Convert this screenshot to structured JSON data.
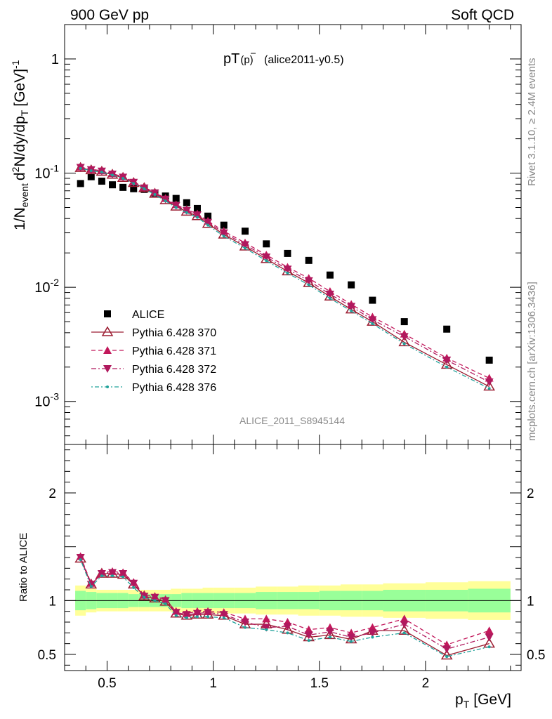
{
  "header": {
    "left": "900 GeV pp",
    "right": "Soft QCD"
  },
  "side": {
    "rivet": "Rivet 3.1.10, ≥ 2.4M events",
    "mcplots": "mcplots.cern.ch [arXiv:1306.3436]"
  },
  "colors": {
    "data": "#000000",
    "p370": "#9b1b30",
    "p371": "#c2185b",
    "p372": "#b0195e",
    "p376": "#20a29a",
    "band_inner": "#99ff99",
    "band_outer": "#ffff99"
  },
  "chart_data": [
    {
      "type": "scatter",
      "title_main": "pT",
      "title_sub": "(p)",
      "title_tag": "(alice2011-y0.5)",
      "analysis": "ALICE_2011_S8945144",
      "ylabel": "1/N",
      "ylabel_sub": "event",
      "ylabel_rest": "d",
      "ylabel_sup": "2",
      "ylabel_tail": "N/dy/dp",
      "ylabel_tail_sub": "T",
      "ylabel_unit": "[GeV]",
      "ylabel_unit_sup": "-1",
      "yscale": "log",
      "ylim": [
        0.00042,
        2.0
      ],
      "xlim": [
        0.3,
        2.45
      ],
      "yticks": [
        {
          "label": "1",
          "sup": "",
          "value": 1
        },
        {
          "label": "10",
          "sup": "-1",
          "value": 0.1
        },
        {
          "label": "10",
          "sup": "-2",
          "value": 0.01
        },
        {
          "label": "10",
          "sup": "-3",
          "value": 0.001
        }
      ],
      "x": [
        0.375,
        0.425,
        0.475,
        0.525,
        0.575,
        0.625,
        0.675,
        0.725,
        0.775,
        0.825,
        0.875,
        0.925,
        0.975,
        1.05,
        1.15,
        1.25,
        1.35,
        1.45,
        1.55,
        1.65,
        1.75,
        1.9,
        2.1,
        2.3
      ],
      "legend": [
        {
          "name": "ALICE",
          "key": "data"
        },
        {
          "name": "Pythia 6.428 370",
          "key": "p370"
        },
        {
          "name": "Pythia 6.428 371",
          "key": "p371"
        },
        {
          "name": "Pythia 6.428 372",
          "key": "p372"
        },
        {
          "name": "Pythia 6.428 376",
          "key": "p376"
        }
      ],
      "series": [
        {
          "name": "ALICE",
          "key": "data",
          "values": [
            0.081,
            0.093,
            0.085,
            0.079,
            0.075,
            0.073,
            0.072,
            0.067,
            0.063,
            0.06,
            0.055,
            0.049,
            0.042,
            0.035,
            0.031,
            0.024,
            0.0198,
            0.0172,
            0.0128,
            0.0105,
            0.0077,
            0.005,
            0.0043,
            0.0023
          ]
        },
        {
          "name": "Pythia 6.428 370",
          "key": "p370",
          "values": [
            0.111,
            0.106,
            0.103,
            0.097,
            0.091,
            0.082,
            0.074,
            0.066,
            0.058,
            0.051,
            0.046,
            0.042,
            0.036,
            0.029,
            0.0228,
            0.0177,
            0.0138,
            0.0109,
            0.0083,
            0.0064,
            0.005,
            0.0033,
            0.0021,
            0.00135
          ]
        },
        {
          "name": "Pythia 6.428 371",
          "key": "p371",
          "values": [
            0.113,
            0.108,
            0.105,
            0.099,
            0.093,
            0.084,
            0.075,
            0.068,
            0.06,
            0.053,
            0.048,
            0.044,
            0.038,
            0.031,
            0.0245,
            0.0192,
            0.015,
            0.012,
            0.0092,
            0.0071,
            0.0055,
            0.0039,
            0.0024,
            0.0016
          ]
        },
        {
          "name": "Pythia 6.428 372",
          "key": "p372",
          "values": [
            0.112,
            0.107,
            0.104,
            0.098,
            0.092,
            0.083,
            0.074,
            0.067,
            0.059,
            0.052,
            0.047,
            0.043,
            0.037,
            0.03,
            0.0236,
            0.0184,
            0.0144,
            0.0114,
            0.0087,
            0.0068,
            0.0052,
            0.0037,
            0.0023,
            0.00148
          ]
        },
        {
          "name": "Pythia 6.428 376",
          "key": "p376",
          "values": [
            0.11,
            0.105,
            0.102,
            0.096,
            0.09,
            0.081,
            0.073,
            0.065,
            0.057,
            0.05,
            0.045,
            0.041,
            0.035,
            0.028,
            0.022,
            0.0171,
            0.0133,
            0.0105,
            0.008,
            0.0062,
            0.0048,
            0.0032,
            0.002,
            0.0013
          ]
        }
      ]
    },
    {
      "type": "line",
      "ylabel": "Ratio to ALICE",
      "ylim": [
        0.35,
        2.45
      ],
      "xlim": [
        0.3,
        2.45
      ],
      "xlabel": "p",
      "xlabel_sub": "T",
      "xlabel_unit": "[GeV]",
      "xticks": [
        {
          "label": "0.5",
          "value": 0.5
        },
        {
          "label": "1",
          "value": 1.0
        },
        {
          "label": "1.5",
          "value": 1.5
        },
        {
          "label": "2",
          "value": 2.0
        }
      ],
      "yticks": [
        {
          "label": "0.5",
          "value": 0.5
        },
        {
          "label": "1",
          "value": 1.0
        },
        {
          "label": "2",
          "value": 2.0
        }
      ],
      "bins": [
        {
          "lo": 0.35,
          "hi": 0.4,
          "inner": 0.09,
          "outer": 0.14
        },
        {
          "lo": 0.4,
          "hi": 0.45,
          "inner": 0.08,
          "outer": 0.11
        },
        {
          "lo": 0.45,
          "hi": 0.5,
          "inner": 0.07,
          "outer": 0.1
        },
        {
          "lo": 0.5,
          "hi": 0.55,
          "inner": 0.07,
          "outer": 0.1
        },
        {
          "lo": 0.55,
          "hi": 0.6,
          "inner": 0.07,
          "outer": 0.1
        },
        {
          "lo": 0.6,
          "hi": 0.65,
          "inner": 0.06,
          "outer": 0.1
        },
        {
          "lo": 0.65,
          "hi": 0.7,
          "inner": 0.06,
          "outer": 0.1
        },
        {
          "lo": 0.7,
          "hi": 0.75,
          "inner": 0.06,
          "outer": 0.1
        },
        {
          "lo": 0.75,
          "hi": 0.8,
          "inner": 0.06,
          "outer": 0.1
        },
        {
          "lo": 0.8,
          "hi": 0.85,
          "inner": 0.06,
          "outer": 0.11
        },
        {
          "lo": 0.85,
          "hi": 0.9,
          "inner": 0.07,
          "outer": 0.11
        },
        {
          "lo": 0.9,
          "hi": 0.95,
          "inner": 0.07,
          "outer": 0.11
        },
        {
          "lo": 0.95,
          "hi": 1.0,
          "inner": 0.07,
          "outer": 0.12
        },
        {
          "lo": 1.0,
          "hi": 1.1,
          "inner": 0.07,
          "outer": 0.12
        },
        {
          "lo": 1.1,
          "hi": 1.2,
          "inner": 0.07,
          "outer": 0.12
        },
        {
          "lo": 1.2,
          "hi": 1.3,
          "inner": 0.08,
          "outer": 0.13
        },
        {
          "lo": 1.3,
          "hi": 1.4,
          "inner": 0.08,
          "outer": 0.13
        },
        {
          "lo": 1.4,
          "hi": 1.5,
          "inner": 0.08,
          "outer": 0.14
        },
        {
          "lo": 1.5,
          "hi": 1.6,
          "inner": 0.09,
          "outer": 0.14
        },
        {
          "lo": 1.6,
          "hi": 1.7,
          "inner": 0.09,
          "outer": 0.15
        },
        {
          "lo": 1.7,
          "hi": 1.8,
          "inner": 0.09,
          "outer": 0.15
        },
        {
          "lo": 1.8,
          "hi": 2.0,
          "inner": 0.1,
          "outer": 0.16
        },
        {
          "lo": 2.0,
          "hi": 2.2,
          "inner": 0.1,
          "outer": 0.17
        },
        {
          "lo": 2.2,
          "hi": 2.4,
          "inner": 0.11,
          "outer": 0.18
        }
      ],
      "series": [
        {
          "name": "Pythia 6.428 370",
          "key": "p370",
          "values": [
            1.39,
            1.15,
            1.25,
            1.25,
            1.24,
            1.15,
            1.04,
            1.02,
            0.99,
            0.88,
            0.86,
            0.87,
            0.87,
            0.86,
            0.78,
            0.78,
            0.73,
            0.66,
            0.68,
            0.64,
            0.72,
            0.72,
            0.49,
            0.6
          ]
        },
        {
          "name": "Pythia 6.428 371",
          "key": "p371",
          "values": [
            1.41,
            1.16,
            1.26,
            1.27,
            1.26,
            1.17,
            1.05,
            1.04,
            1.01,
            0.9,
            0.88,
            0.9,
            0.9,
            0.89,
            0.83,
            0.83,
            0.8,
            0.73,
            0.75,
            0.7,
            0.75,
            0.83,
            0.59,
            0.72
          ]
        },
        {
          "name": "Pythia 6.428 372",
          "key": "p372",
          "values": [
            1.4,
            1.15,
            1.25,
            1.26,
            1.25,
            1.16,
            1.04,
            1.03,
            1.0,
            0.89,
            0.87,
            0.88,
            0.89,
            0.87,
            0.8,
            0.75,
            0.76,
            0.68,
            0.71,
            0.66,
            0.7,
            0.78,
            0.55,
            0.66
          ]
        },
        {
          "name": "Pythia 6.428 376",
          "key": "p376",
          "values": [
            1.38,
            1.13,
            1.23,
            1.23,
            1.22,
            1.12,
            1.03,
            1.0,
            0.97,
            0.86,
            0.84,
            0.85,
            0.85,
            0.84,
            0.75,
            0.73,
            0.7,
            0.63,
            0.66,
            0.62,
            0.66,
            0.7,
            0.48,
            0.57
          ]
        }
      ]
    }
  ]
}
